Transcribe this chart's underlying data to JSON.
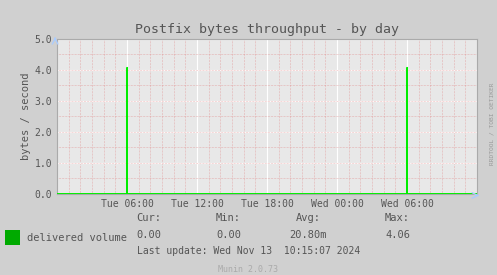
{
  "title": "Postfix bytes throughput - by day",
  "ylabel": "bytes / second",
  "bg_color": "#d0d0d0",
  "plot_bg_color": "#e8e8e8",
  "grid_color_white": "#ffffff",
  "grid_color_pink": "#e08080",
  "line_color": "#00ee00",
  "ylim": [
    0.0,
    5.0
  ],
  "yticks": [
    0.0,
    1.0,
    2.0,
    3.0,
    4.0,
    5.0
  ],
  "xtick_labels": [
    "Tue 06:00",
    "Tue 12:00",
    "Tue 18:00",
    "Wed 00:00",
    "Wed 06:00"
  ],
  "legend_label": "delivered volume",
  "legend_color": "#00aa00",
  "cur_label": "Cur:",
  "cur_val": "0.00",
  "min_label": "Min:",
  "min_val": "0.00",
  "avg_label": "Avg:",
  "avg_val": "20.80m",
  "max_label": "Max:",
  "max_val": "4.06",
  "last_update": "Last update: Wed Nov 13  10:15:07 2024",
  "munin_label": "Munin 2.0.73",
  "watermark": "RRDTOOL / TOBI OETIKER",
  "axis_color": "#aaaaaa",
  "text_color": "#555555",
  "spike1_hour": 6,
  "spike2_hour": 30,
  "spike_val": 4.06,
  "total_hours": 36
}
